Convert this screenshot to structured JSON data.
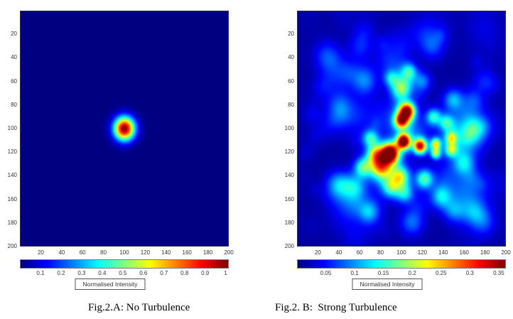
{
  "page": {
    "background": "#ffffff",
    "text_color": "#333333"
  },
  "chart_data": [
    {
      "type": "heatmap",
      "panel": "A",
      "caption": "Fig.2.A: No Turbulence",
      "colormap": "jet",
      "axis_range": [
        1,
        200
      ],
      "x_ticks": [
        "20",
        "40",
        "60",
        "80",
        "100",
        "120",
        "140",
        "160",
        "180",
        "200"
      ],
      "y_ticks": [
        "20",
        "40",
        "60",
        "80",
        "100",
        "120",
        "140",
        "160",
        "180",
        "200"
      ],
      "colorbar": {
        "label": "Normalised Intensity",
        "ticks": [
          "0.1",
          "0.2",
          "0.3",
          "0.4",
          "0.5",
          "0.6",
          "0.7",
          "0.8",
          "0.9",
          "1"
        ],
        "scale_max": 1.015
      },
      "background_level": 0,
      "hotspots": [
        {
          "x": 100,
          "y": 100,
          "sigma": 7,
          "amp": 1.0
        }
      ]
    },
    {
      "type": "heatmap",
      "panel": "B",
      "caption": "Fig.2. B:  Strong Turbulence",
      "colormap": "jet",
      "axis_range": [
        1,
        200
      ],
      "x_ticks": [
        "20",
        "40",
        "60",
        "80",
        "100",
        "120",
        "140",
        "160",
        "180",
        "200"
      ],
      "y_ticks": [
        "20",
        "40",
        "60",
        "80",
        "100",
        "120",
        "140",
        "160",
        "180",
        "200"
      ],
      "colorbar": {
        "label": "Normalised Intensity",
        "ticks": [
          "0.05",
          "0.1",
          "0.15",
          "0.2",
          "0.25",
          "0.3",
          "0.35"
        ],
        "scale_max": 0.3625
      },
      "background_level": 0.03,
      "noise": {
        "seed": 20,
        "count": 90,
        "amp_min": 0.04,
        "amp_max": 0.15,
        "sigma_min": 4,
        "sigma_max": 13,
        "spread": 95,
        "falloff_sigma": 75
      },
      "hotspots": [
        {
          "x": 106,
          "y": 85,
          "sigma": 5,
          "amp": 0.82
        },
        {
          "x": 100,
          "y": 93,
          "sigma": 5,
          "amp": 0.78
        },
        {
          "x": 102,
          "y": 111,
          "sigma": 4.5,
          "amp": 1.0
        },
        {
          "x": 89,
          "y": 121,
          "sigma": 6,
          "amp": 1.02
        },
        {
          "x": 118,
          "y": 115,
          "sigma": 4.5,
          "amp": 0.85
        },
        {
          "x": 100,
          "y": 66,
          "sigma": 7,
          "amp": 0.48
        },
        {
          "x": 107,
          "y": 52,
          "sigma": 6,
          "amp": 0.28
        },
        {
          "x": 90,
          "y": 57,
          "sigma": 5,
          "amp": 0.25
        },
        {
          "x": 75,
          "y": 122,
          "sigma": 6,
          "amp": 0.5
        },
        {
          "x": 63,
          "y": 133,
          "sigma": 6,
          "amp": 0.4
        },
        {
          "x": 80,
          "y": 133,
          "sigma": 7,
          "amp": 0.55
        },
        {
          "x": 99,
          "y": 141,
          "sigma": 6,
          "amp": 0.42
        },
        {
          "x": 103,
          "y": 155,
          "sigma": 6,
          "amp": 0.3
        },
        {
          "x": 131,
          "y": 90,
          "sigma": 5,
          "amp": 0.35
        },
        {
          "x": 143,
          "y": 95,
          "sigma": 5,
          "amp": 0.3
        },
        {
          "x": 133,
          "y": 113,
          "sigma": 3.5,
          "amp": 0.5
        },
        {
          "x": 133,
          "y": 121,
          "sigma": 3.5,
          "amp": 0.45
        },
        {
          "x": 148,
          "y": 108,
          "sigma": 4,
          "amp": 0.4
        },
        {
          "x": 148,
          "y": 118,
          "sigma": 4,
          "amp": 0.38
        },
        {
          "x": 122,
          "y": 143,
          "sigma": 6,
          "amp": 0.42
        },
        {
          "x": 138,
          "y": 158,
          "sigma": 7,
          "amp": 0.3
        },
        {
          "x": 90,
          "y": 150,
          "sigma": 6,
          "amp": 0.32
        },
        {
          "x": 70,
          "y": 108,
          "sigma": 5,
          "amp": 0.3
        },
        {
          "x": 55,
          "y": 150,
          "sigma": 8,
          "amp": 0.26
        },
        {
          "x": 40,
          "y": 148,
          "sigma": 8,
          "amp": 0.25
        },
        {
          "x": 160,
          "y": 130,
          "sigma": 7,
          "amp": 0.22
        },
        {
          "x": 120,
          "y": 60,
          "sigma": 6,
          "amp": 0.22
        },
        {
          "x": 150,
          "y": 75,
          "sigma": 6,
          "amp": 0.2
        },
        {
          "x": 65,
          "y": 60,
          "sigma": 8,
          "amp": 0.18
        },
        {
          "x": 40,
          "y": 80,
          "sigma": 8,
          "amp": 0.15
        },
        {
          "x": 170,
          "y": 100,
          "sigma": 7,
          "amp": 0.18
        },
        {
          "x": 110,
          "y": 180,
          "sigma": 8,
          "amp": 0.2
        },
        {
          "x": 150,
          "y": 170,
          "sigma": 7,
          "amp": 0.18
        },
        {
          "x": 70,
          "y": 170,
          "sigma": 8,
          "amp": 0.18
        },
        {
          "x": 30,
          "y": 40,
          "sigma": 9,
          "amp": 0.12
        },
        {
          "x": 170,
          "y": 170,
          "sigma": 8,
          "amp": 0.14
        },
        {
          "x": 180,
          "y": 60,
          "sigma": 8,
          "amp": 0.12
        },
        {
          "x": 60,
          "y": 30,
          "sigma": 8,
          "amp": 0.12
        },
        {
          "x": 130,
          "y": 30,
          "sigma": 8,
          "amp": 0.14
        },
        {
          "x": 180,
          "y": 180,
          "sigma": 8,
          "amp": 0.12
        }
      ]
    }
  ]
}
